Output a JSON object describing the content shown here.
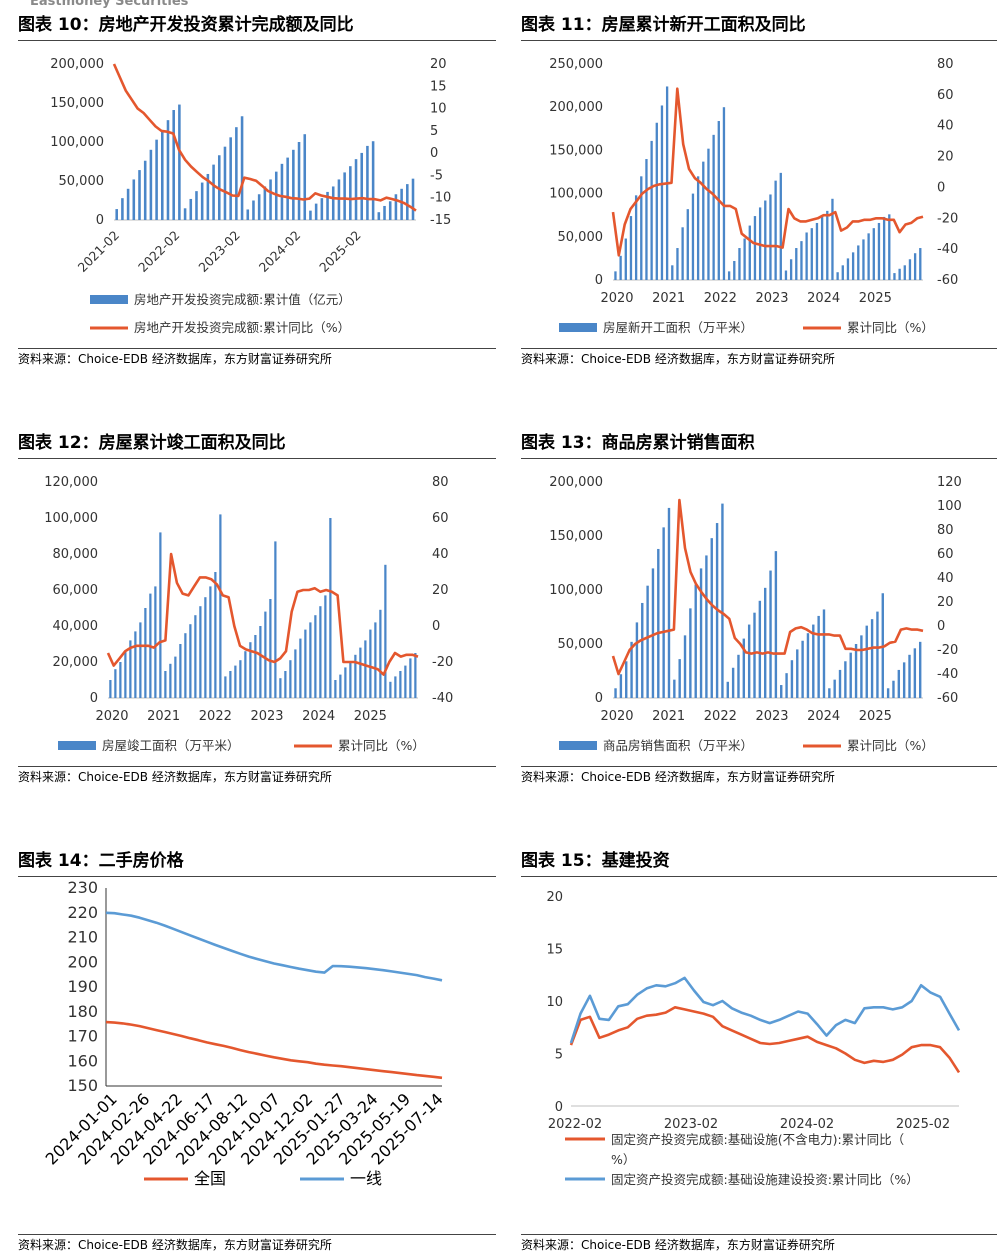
{
  "header": {
    "brand": "Eastmoney Securities"
  },
  "colors": {
    "bar": "#4a86c8",
    "line": "#e4572e",
    "blue_line": "#5b9bd5"
  },
  "source": "资料来源：Choice-EDB 经济数据库，东方财富证券研究所",
  "panels": [
    {
      "id": "p10",
      "title": "图表 10：房地产开发投资累计完成额及同比",
      "chart_data": {
        "type": "bar+line",
        "x_ticks": [
          "2021-02",
          "2022-02",
          "2023-02",
          "2024-02",
          "2025-02"
        ],
        "left_axis": {
          "ticks": [
            "200,000",
            "150,000",
            "100,000",
            "50,000",
            "0"
          ],
          "range": [
            0,
            200000
          ]
        },
        "right_axis": {
          "ticks": [
            "20",
            "15",
            "10",
            "5",
            "0",
            "-5",
            "-10",
            "-15"
          ],
          "range": [
            -15,
            20
          ]
        },
        "bar_series": {
          "name": "房地产开发投资完成额:累计值（亿元）",
          "values": [
            14000,
            28000,
            40000,
            52000,
            64000,
            76000,
            90000,
            103000,
            115000,
            128000,
            141000,
            148000,
            15000,
            27000,
            37000,
            48000,
            59000,
            71000,
            83000,
            94000,
            106000,
            119000,
            133000,
            13500,
            25000,
            33000,
            43000,
            52000,
            62000,
            72000,
            80000,
            90000,
            100000,
            110000,
            12000,
            21000,
            28000,
            36000,
            43000,
            52000,
            61000,
            69000,
            78000,
            86000,
            95000,
            101000,
            10000,
            18000,
            24000,
            33000,
            40000,
            46000,
            53000
          ]
        },
        "line_series": {
          "name": "房地产开发投资完成额:累计同比（%）",
          "values": [
            20,
            17,
            14,
            12,
            10,
            9,
            7.5,
            6,
            5,
            4.8,
            4.4,
            0.7,
            -1.5,
            -3,
            -4.2,
            -5.4,
            -6.3,
            -7.4,
            -8.2,
            -8.8,
            -9.5,
            -9.6,
            -5.5,
            -5.8,
            -6.2,
            -7.3,
            -8.5,
            -9.1,
            -9.6,
            -9.8,
            -10.1,
            -10.2,
            -10.4,
            -10.2,
            -9.0,
            -9.5,
            -9.8,
            -10.1,
            -10.2,
            -10.2,
            -10.3,
            -10.2,
            -10.1,
            -10.3,
            -10.3,
            -10.6,
            -10.0,
            -10.3,
            -10.7,
            -11.2,
            -12.0,
            -12.9
          ]
        }
      },
      "legend": [
        "房地产开发投资完成额:累计值（亿元）",
        "房地产开发投资完成额:累计同比（%）"
      ]
    },
    {
      "id": "p11",
      "title": "图表 11：房屋累计新开工面积及同比",
      "chart_data": {
        "type": "bar+line",
        "x_ticks": [
          "2020",
          "2021",
          "2022",
          "2023",
          "2024",
          "2025"
        ],
        "left_axis": {
          "ticks": [
            "250,000",
            "200,000",
            "150,000",
            "100,000",
            "50,000",
            "0"
          ],
          "range": [
            0,
            250000
          ]
        },
        "right_axis": {
          "ticks": [
            "80",
            "60",
            "40",
            "20",
            "0",
            "-20",
            "-40",
            "-60"
          ],
          "range": [
            -60,
            80
          ]
        },
        "bar_series": {
          "name": "房屋新开工面积（万平米）",
          "values": [
            10000,
            28000,
            48000,
            74000,
            98000,
            120000,
            140000,
            161000,
            182000,
            202000,
            224000,
            17000,
            37000,
            61000,
            82000,
            100000,
            120000,
            137000,
            152000,
            168000,
            184000,
            200000,
            10000,
            22000,
            37000,
            48000,
            63000,
            74000,
            84000,
            92000,
            99000,
            115000,
            124000,
            11000,
            24000,
            37000,
            45000,
            55000,
            60000,
            66000,
            73000,
            80000,
            94000,
            9000,
            17000,
            25000,
            32000,
            40000,
            47000,
            54000,
            60000,
            66000,
            73000,
            76000,
            8000,
            13000,
            17000,
            24000,
            31000,
            37000
          ]
        },
        "line_series": {
          "name": "累计同比（%）",
          "values": [
            -16,
            -44,
            -24,
            -14,
            -9,
            -4,
            -1,
            1,
            2,
            2.5,
            3,
            64,
            28,
            12,
            6,
            3,
            -1,
            -4,
            -8,
            -12,
            -12,
            -14,
            -30,
            -33,
            -36,
            -37,
            -38,
            -38,
            -38,
            -39,
            -14,
            -20,
            -22,
            -22,
            -21,
            -20,
            -18,
            -18,
            -16,
            -28,
            -26,
            -22,
            -22,
            -21,
            -21,
            -20,
            -20,
            -21,
            -21,
            -29,
            -24,
            -23,
            -20,
            -19
          ]
        }
      },
      "legend": [
        "房屋新开工面积（万平米）",
        "累计同比（%）"
      ]
    },
    {
      "id": "p12",
      "title": "图表 12：房屋累计竣工面积及同比",
      "chart_data": {
        "type": "bar+line",
        "x_ticks": [
          "2020",
          "2021",
          "2022",
          "2023",
          "2024",
          "2025"
        ],
        "left_axis": {
          "ticks": [
            "120,000",
            "100,000",
            "80,000",
            "60,000",
            "40,000",
            "20,000",
            "0"
          ],
          "range": [
            0,
            120000
          ]
        },
        "right_axis": {
          "ticks": [
            "80",
            "60",
            "40",
            "20",
            "0",
            "-20",
            "-40"
          ],
          "range": [
            -40,
            80
          ]
        },
        "bar_series": {
          "name": "房屋竣工面积（万平米）",
          "values": [
            10000,
            16000,
            20000,
            26000,
            32000,
            37000,
            42000,
            50000,
            58000,
            62000,
            92000,
            15000,
            19000,
            23000,
            30000,
            36000,
            41000,
            46000,
            51000,
            56000,
            62000,
            70000,
            102000,
            12000,
            15000,
            18000,
            21000,
            26000,
            31000,
            35000,
            40000,
            48000,
            55000,
            87000,
            11000,
            15000,
            21000,
            27000,
            33000,
            38000,
            42000,
            46000,
            51000,
            57000,
            100000,
            10000,
            13000,
            17000,
            20000,
            24000,
            28000,
            32000,
            38000,
            42000,
            49000,
            74000,
            9000,
            12000,
            15000,
            18000,
            22000,
            25000
          ]
        },
        "line_series": {
          "name": "累计同比（%）",
          "values": [
            -15,
            -22,
            -18,
            -14,
            -12,
            -11,
            -11,
            -11,
            -12,
            -9,
            -8,
            40,
            24,
            18,
            17,
            22,
            27,
            27,
            26,
            23,
            17,
            16,
            0,
            -11,
            -13,
            -14,
            -15,
            -17,
            -19,
            -20,
            -18,
            -14,
            8,
            19,
            20,
            20,
            21,
            19,
            20,
            19,
            17,
            -20,
            -20,
            -20,
            -21,
            -22,
            -23,
            -24,
            -27,
            -20,
            -15,
            -17,
            -16,
            -16,
            -17
          ]
        }
      },
      "legend": [
        "房屋竣工面积（万平米）",
        "累计同比（%）"
      ]
    },
    {
      "id": "p13",
      "title": "图表 13：商品房累计销售面积",
      "chart_data": {
        "type": "bar+line",
        "x_ticks": [
          "2020",
          "2021",
          "2022",
          "2023",
          "2024",
          "2025"
        ],
        "left_axis": {
          "ticks": [
            "200,000",
            "150,000",
            "100,000",
            "50,000",
            "0"
          ],
          "range": [
            0,
            200000
          ]
        },
        "right_axis": {
          "ticks": [
            "120",
            "100",
            "80",
            "60",
            "40",
            "20",
            "0",
            "-20",
            "-40",
            "-60"
          ],
          "range": [
            -60,
            120
          ]
        },
        "bar_series": {
          "name": "商品房销售面积（万平米）",
          "values": [
            9000,
            22000,
            34000,
            52000,
            70000,
            88000,
            104000,
            120000,
            138000,
            158000,
            176000,
            17000,
            36000,
            58000,
            83000,
            105000,
            120000,
            132000,
            148000,
            162000,
            180000,
            15000,
            28000,
            40000,
            55000,
            68000,
            79000,
            90000,
            102000,
            118000,
            136000,
            12000,
            23000,
            35000,
            45000,
            53000,
            60000,
            68000,
            76000,
            82000,
            9000,
            17000,
            26000,
            34000,
            42000,
            50000,
            58000,
            67000,
            73000,
            80000,
            97000,
            9000,
            16000,
            26000,
            33000,
            40000,
            46000,
            52000
          ]
        },
        "line_series": {
          "name": "累计同比（%）",
          "values": [
            -25,
            -40,
            -30,
            -20,
            -15,
            -12,
            -10,
            -8,
            -6,
            -5,
            -4,
            -3,
            105,
            65,
            45,
            35,
            28,
            22,
            17,
            13,
            10,
            6,
            -10,
            -15,
            -22,
            -23,
            -22,
            -23,
            -22,
            -23,
            -23,
            -23,
            -5,
            -2,
            -1,
            -3,
            -6,
            -7,
            -7,
            -7,
            -8,
            -8,
            -19,
            -19,
            -20,
            -20,
            -19,
            -18,
            -18,
            -17,
            -14,
            -13,
            -3,
            -2,
            -3,
            -3,
            -4
          ]
        }
      },
      "legend": [
        "商品房销售面积（万平米）",
        "累计同比（%）"
      ]
    },
    {
      "id": "p14",
      "title": "图表 14：二手房价格",
      "chart_data": {
        "type": "line",
        "x_ticks": [
          "2024-01-01",
          "2024-02-26",
          "2024-04-22",
          "2024-06-17",
          "2024-08-12",
          "2024-10-07",
          "2024-12-02",
          "2025-01-27",
          "2025-03-24",
          "2025-05-19",
          "2025-07-14"
        ],
        "y_axis": {
          "ticks": [
            "230",
            "220",
            "210",
            "200",
            "190",
            "180",
            "170",
            "160",
            "150"
          ],
          "range": [
            150,
            230
          ]
        },
        "series": [
          {
            "name": "全国",
            "values": [
              175.8,
              175.6,
              175.3,
              174.8,
              174.2,
              173.4,
              172.6,
              171.8,
              171.0,
              170.2,
              169.3,
              168.5,
              167.6,
              166.9,
              166.2,
              165.4,
              164.5,
              163.7,
              163.0,
              162.3,
              161.6,
              161.0,
              160.4,
              160.0,
              159.6,
              159.0,
              158.6,
              158.3,
              158.0,
              157.6,
              157.2,
              156.8,
              156.4,
              156.0,
              155.6,
              155.2,
              154.8,
              154.4,
              154.1,
              153.7,
              153.3
            ]
          },
          {
            "name": "一线",
            "values": [
              220.0,
              219.8,
              219.3,
              218.8,
              218.0,
              217.0,
              216.0,
              214.8,
              213.5,
              212.2,
              210.9,
              209.6,
              208.3,
              207.0,
              205.8,
              204.6,
              203.4,
              202.3,
              201.3,
              200.4,
              199.5,
              198.8,
              198.1,
              197.4,
              196.8,
              196.2,
              195.8,
              198.5,
              198.4,
              198.2,
              197.9,
              197.6,
              197.2,
              196.8,
              196.3,
              195.8,
              195.3,
              194.8,
              194.0,
              193.4,
              192.7
            ]
          }
        ]
      },
      "legend": [
        "全国",
        "一线"
      ]
    },
    {
      "id": "p15",
      "title": "图表 15：基建投资",
      "chart_data": {
        "type": "line",
        "x_ticks": [
          "2022-02",
          "2023-02",
          "2024-02",
          "2025-02"
        ],
        "y_axis": {
          "ticks": [
            "20",
            "15",
            "10",
            "5",
            "0"
          ],
          "range": [
            0,
            20
          ]
        },
        "series": [
          {
            "name": "固定资产投资完成额:基础设施(不含电力):累计同比（%）",
            "values": [
              5.8,
              8.2,
              8.5,
              6.5,
              6.8,
              7.2,
              7.5,
              8.3,
              8.6,
              8.7,
              8.9,
              9.4,
              9.2,
              9.0,
              8.8,
              8.5,
              7.6,
              7.2,
              6.8,
              6.4,
              6.0,
              5.9,
              6.0,
              6.2,
              6.4,
              6.6,
              6.1,
              5.8,
              5.5,
              5.0,
              4.4,
              4.1,
              4.3,
              4.2,
              4.4,
              4.9,
              5.6,
              5.8,
              5.8,
              5.6,
              4.6,
              3.2
            ]
          },
          {
            "name": "固定资产投资完成额:基础设施建设投资:累计同比（%）",
            "values": [
              6.0,
              8.8,
              10.5,
              8.3,
              8.2,
              9.5,
              9.7,
              10.6,
              11.2,
              11.5,
              11.4,
              11.7,
              12.2,
              11.0,
              9.9,
              9.6,
              10.0,
              9.3,
              8.9,
              8.6,
              8.2,
              7.9,
              8.2,
              8.6,
              9.0,
              8.8,
              7.8,
              6.7,
              7.7,
              8.2,
              7.9,
              9.3,
              9.4,
              9.4,
              9.2,
              9.4,
              10.0,
              11.5,
              10.8,
              10.4,
              8.8,
              7.2
            ]
          }
        ]
      },
      "legend": [
        "固定资产投资完成额:基础设施(不含电力):累计同比（%）",
        "固定资产投资完成额:基础设施建设投资:累计同比（%）"
      ]
    }
  ]
}
